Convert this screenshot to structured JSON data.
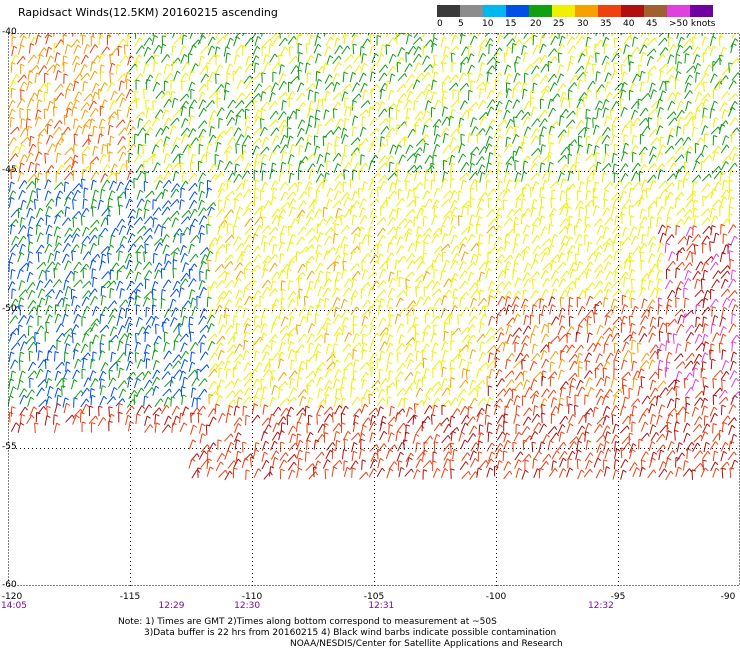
{
  "title": "Rapidsact Winds(12.5KM) 20160215 ascending",
  "color_scale": {
    "labels": [
      "0",
      "5",
      "10",
      "15",
      "20",
      "25",
      "30",
      "35",
      "40",
      "45",
      ">50 knots"
    ],
    "colors": [
      "#3a3a3a",
      "#8c8c8c",
      "#00b8f0",
      "#0050e8",
      "#10a010",
      "#f0f000",
      "#f8a000",
      "#f04010",
      "#b01010",
      "#a06030",
      "#e040e0",
      "#7000a0"
    ]
  },
  "chart_data": {
    "type": "wind-barb-map",
    "x_ticks": [
      "-120",
      "-115",
      "-110",
      "-105",
      "-100",
      "-95",
      "-90"
    ],
    "y_ticks": [
      "-40",
      "-45",
      "-50",
      "-55",
      "-60"
    ],
    "xlim": [
      -120,
      -90
    ],
    "ylim": [
      -60,
      -40
    ],
    "grid": true,
    "grid_lon": [
      -115,
      -110,
      -105,
      -100,
      -95
    ],
    "grid_lat": [
      -45,
      -50,
      -55
    ],
    "times": [
      {
        "lon": -120,
        "label": "14:05"
      },
      {
        "lon": -113.3,
        "label": "12:29"
      },
      {
        "lon": -110.2,
        "label": "12:30"
      },
      {
        "lon": -104.7,
        "label": "12:31"
      },
      {
        "lon": -95.7,
        "label": "12:32"
      }
    ]
  },
  "notes": [
    "Note: 1) Times are GMT 2)Times along bottom correspond to measurement at ~50S",
    "3)Data buffer is 22 hrs from 20160215 4) Black wind barbs indicate possible contamination",
    "NOAA/NESDIS/Center for Satellite Applications and Research"
  ]
}
